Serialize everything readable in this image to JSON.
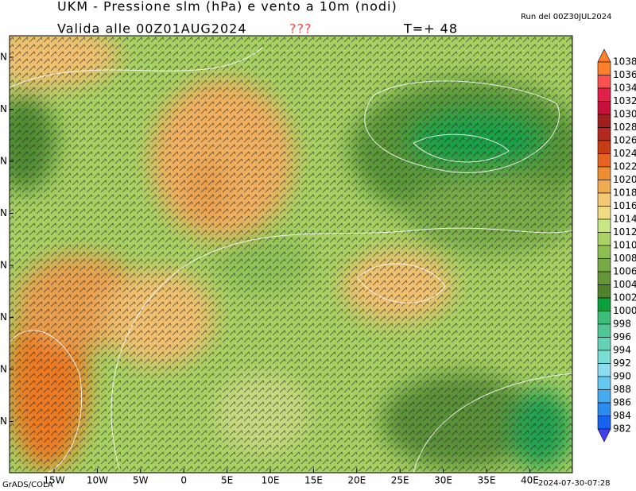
{
  "header": {
    "title": "UKM - Pressione slm (hPa) e vento a 10m (nodi)",
    "valid": "Valida alle 00Z01AUG2024",
    "flag": "???",
    "step": "T=+ 48",
    "run": "Run del 00Z30JUL2024"
  },
  "map": {
    "lon_labels": [
      "15W",
      "10W",
      "5W",
      "0",
      "5E",
      "10E",
      "15E",
      "20E",
      "25E",
      "30E",
      "35E",
      "40E"
    ],
    "lat_labels": [
      "N",
      "N",
      "N",
      "N",
      "N",
      "N",
      "N",
      "N"
    ]
  },
  "colorbar": {
    "labels": [
      "1038",
      "1036",
      "1034",
      "1032",
      "1030",
      "1028",
      "1026",
      "1024",
      "1022",
      "1020",
      "1018",
      "1016",
      "1014",
      "1012",
      "1010",
      "1008",
      "1006",
      "1004",
      "1002",
      "1000",
      "998",
      "996",
      "994",
      "992",
      "990",
      "988",
      "986",
      "984",
      "982"
    ],
    "colors": [
      "#ff7f2a",
      "#ff5050",
      "#e0204a",
      "#c8103c",
      "#a01e1e",
      "#b4281e",
      "#c83c14",
      "#e6641e",
      "#f08c32",
      "#f0aa50",
      "#f5c873",
      "#f0dc82",
      "#c8e682",
      "#aad264",
      "#8cbe50",
      "#78aa46",
      "#649637",
      "#50822d",
      "#0aa03c",
      "#3cbe78",
      "#50c896",
      "#64d2b4",
      "#78dcd2",
      "#8cdcf0",
      "#64c8f0",
      "#46aaf0",
      "#288cf0",
      "#1464f0"
    ]
  },
  "footer": {
    "credit": "GrADS/COLA",
    "timestamp": "2024-07-30-07:28"
  }
}
